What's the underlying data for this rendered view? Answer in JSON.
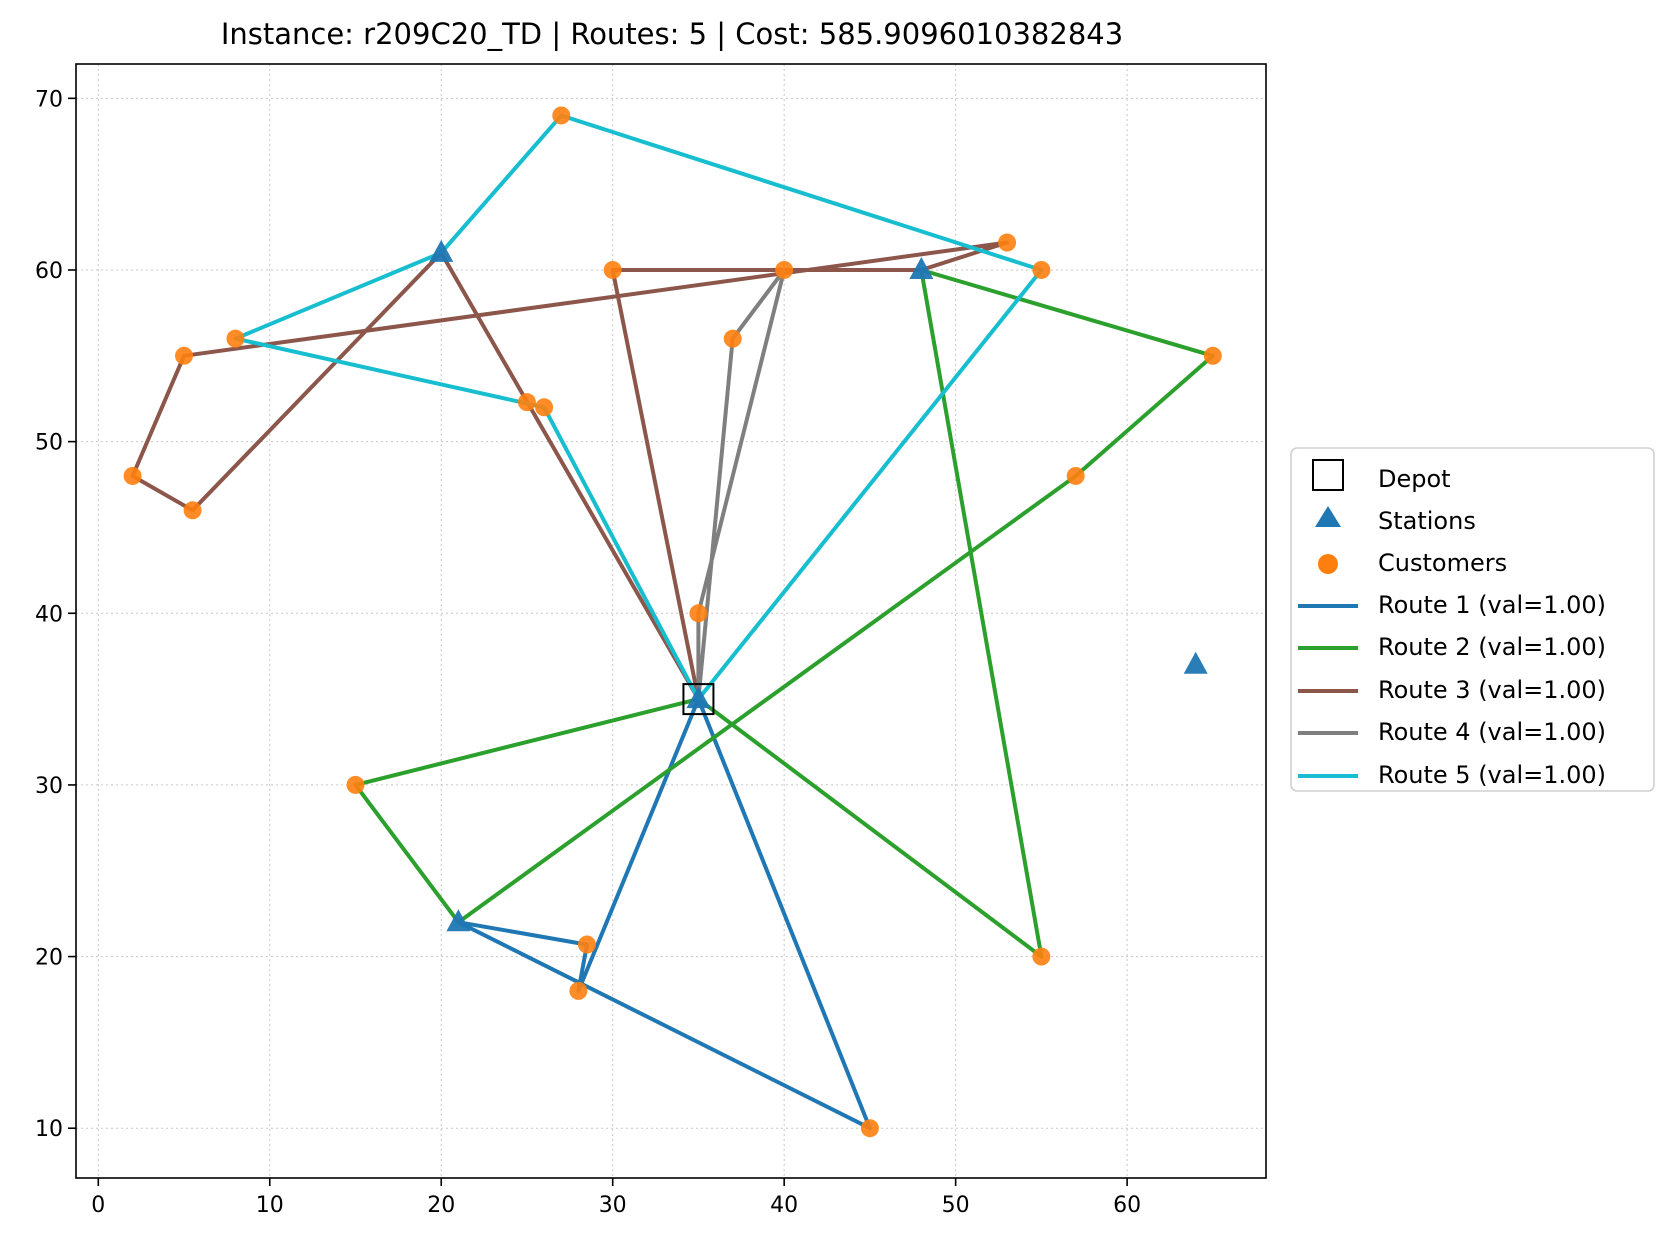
{
  "chart_data": {
    "type": "scatter",
    "title": "Instance: r209C20_TD  |  Routes: 5  |  Cost: 585.9096010382843",
    "xlabel": "",
    "ylabel": "",
    "xlim": [
      -1.3,
      68.1
    ],
    "ylim": [
      7.1,
      72.0
    ],
    "xticks": [
      0,
      10,
      20,
      30,
      40,
      50,
      60
    ],
    "yticks": [
      10,
      20,
      30,
      40,
      50,
      60,
      70
    ],
    "grid": true,
    "legend_placement": "outside right",
    "colors": {
      "depot": "#000000",
      "stations": "#1f77b4",
      "customers": "#ff7f0e",
      "grid": "#b0b0b0"
    },
    "depot": {
      "label": "Depot",
      "x": 35,
      "y": 35
    },
    "stations": {
      "label": "Stations",
      "points": [
        [
          20,
          61
        ],
        [
          48,
          60
        ],
        [
          21,
          22
        ],
        [
          35,
          35
        ],
        [
          64,
          37
        ]
      ]
    },
    "customers": {
      "label": "Customers",
      "points": [
        [
          27,
          69
        ],
        [
          53,
          61.6
        ],
        [
          55,
          60
        ],
        [
          30,
          60
        ],
        [
          40,
          60
        ],
        [
          8,
          56
        ],
        [
          5,
          55
        ],
        [
          37,
          56
        ],
        [
          65,
          55
        ],
        [
          25,
          52.3
        ],
        [
          26,
          52
        ],
        [
          2,
          48
        ],
        [
          57,
          48
        ],
        [
          5.5,
          46
        ],
        [
          35,
          40
        ],
        [
          15,
          30
        ],
        [
          28.5,
          20.7
        ],
        [
          55,
          20
        ],
        [
          28,
          18
        ],
        [
          45,
          10
        ]
      ]
    },
    "series": [
      {
        "name": "Route 1 (val=1.00)",
        "color": "#1f77b4",
        "points": [
          [
            35,
            35
          ],
          [
            45,
            10
          ],
          [
            21,
            22
          ],
          [
            28.5,
            20.7
          ],
          [
            28,
            18
          ],
          [
            35,
            35
          ]
        ]
      },
      {
        "name": "Route 2 (val=1.00)",
        "color": "#2ca02c",
        "points": [
          [
            35,
            35
          ],
          [
            55,
            20
          ],
          [
            48,
            60
          ],
          [
            65,
            55
          ],
          [
            57,
            48
          ],
          [
            21,
            22
          ],
          [
            15,
            30
          ],
          [
            35,
            35
          ]
        ]
      },
      {
        "name": "Route 3 (val=1.00)",
        "color": "#8c564b",
        "points": [
          [
            35,
            35
          ],
          [
            30,
            60
          ],
          [
            40,
            60
          ],
          [
            48,
            60
          ],
          [
            53,
            61.6
          ],
          [
            5,
            55
          ],
          [
            2,
            48
          ],
          [
            5.5,
            46
          ],
          [
            20,
            61
          ],
          [
            35,
            35
          ]
        ]
      },
      {
        "name": "Route 4 (val=1.00)",
        "color": "#7f7f7f",
        "points": [
          [
            35,
            35
          ],
          [
            35,
            40
          ],
          [
            40,
            60
          ],
          [
            37,
            56
          ],
          [
            35,
            35
          ]
        ]
      },
      {
        "name": "Route 5 (val=1.00)",
        "color": "#17becf",
        "points": [
          [
            35,
            35
          ],
          [
            55,
            60
          ],
          [
            27,
            69
          ],
          [
            20,
            61
          ],
          [
            8,
            56
          ],
          [
            26,
            52
          ],
          [
            35,
            35
          ]
        ]
      }
    ]
  }
}
